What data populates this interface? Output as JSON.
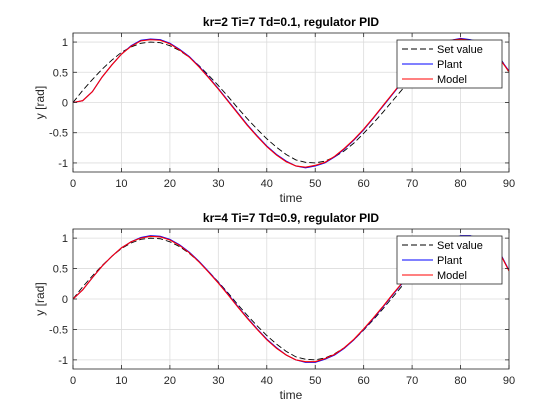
{
  "chart_data": [
    {
      "type": "line",
      "title": "kr=2 Ti=7 Td=0.1, regulator PID",
      "xlabel": "time",
      "ylabel": "y [rad]",
      "xlim": [
        0,
        90
      ],
      "ylim": [
        -1.15,
        1.15
      ],
      "xticks": [
        0,
        10,
        20,
        30,
        40,
        50,
        60,
        70,
        80,
        90
      ],
      "yticks": [
        -1,
        -0.5,
        0,
        0.5,
        1
      ],
      "xtick_labels": [
        "0",
        "10",
        "20",
        "30",
        "40",
        "50",
        "60",
        "70",
        "80",
        "90"
      ],
      "ytick_labels": [
        "-1",
        "-0.5",
        "0",
        "0.5",
        "1"
      ],
      "grid": true,
      "legend_position": "top-right",
      "series": [
        {
          "name": "Set value",
          "color": "#000000",
          "dash": "dashed",
          "x": [
            0,
            2,
            4,
            6,
            8,
            10,
            12,
            14,
            16,
            18,
            20,
            22,
            24,
            26,
            28,
            30,
            32,
            34,
            36,
            38,
            40,
            42,
            44,
            46,
            48,
            50,
            52,
            54,
            56,
            58,
            60,
            62,
            64,
            66,
            68,
            70,
            72,
            74,
            76,
            78,
            80,
            82,
            84,
            86,
            88,
            90
          ],
          "y": [
            0.0,
            0.2,
            0.38,
            0.55,
            0.7,
            0.83,
            0.92,
            0.98,
            1.0,
            0.99,
            0.94,
            0.86,
            0.75,
            0.61,
            0.45,
            0.28,
            0.1,
            -0.09,
            -0.27,
            -0.44,
            -0.6,
            -0.74,
            -0.86,
            -0.95,
            -0.99,
            -1.0,
            -0.97,
            -0.9,
            -0.8,
            -0.67,
            -0.51,
            -0.34,
            -0.16,
            0.03,
            0.22,
            0.39,
            0.56,
            0.71,
            0.84,
            0.93,
            0.99,
            1.0,
            0.96,
            0.88,
            0.76,
            0.5
          ]
        },
        {
          "name": "Plant",
          "color": "#0000ff",
          "dash": "solid",
          "x": [
            0,
            2,
            4,
            6,
            8,
            10,
            12,
            14,
            16,
            18,
            20,
            22,
            24,
            26,
            28,
            30,
            32,
            34,
            36,
            38,
            40,
            42,
            44,
            46,
            48,
            50,
            52,
            54,
            56,
            58,
            60,
            62,
            64,
            66,
            68,
            70,
            72,
            74,
            76,
            78,
            80,
            82,
            84,
            86,
            88,
            90
          ],
          "y": [
            0.0,
            0.03,
            0.18,
            0.42,
            0.62,
            0.8,
            0.94,
            1.03,
            1.05,
            1.04,
            0.98,
            0.88,
            0.76,
            0.6,
            0.42,
            0.23,
            0.03,
            -0.17,
            -0.37,
            -0.55,
            -0.72,
            -0.86,
            -0.97,
            -1.05,
            -1.08,
            -1.05,
            -1.0,
            -0.9,
            -0.77,
            -0.62,
            -0.45,
            -0.26,
            -0.06,
            0.14,
            0.34,
            0.52,
            0.69,
            0.84,
            0.96,
            1.03,
            1.06,
            1.04,
            1.0,
            0.9,
            0.74,
            0.52
          ]
        },
        {
          "name": "Model",
          "color": "#ff0000",
          "dash": "solid",
          "x": [
            0,
            2,
            4,
            6,
            8,
            10,
            12,
            14,
            16,
            18,
            20,
            22,
            24,
            26,
            28,
            30,
            32,
            34,
            36,
            38,
            40,
            42,
            44,
            46,
            48,
            50,
            52,
            54,
            56,
            58,
            60,
            62,
            64,
            66,
            68,
            70,
            72,
            74,
            76,
            78,
            80,
            82,
            84,
            86,
            88,
            90
          ],
          "y": [
            0.0,
            0.03,
            0.18,
            0.42,
            0.62,
            0.8,
            0.93,
            1.02,
            1.04,
            1.03,
            0.97,
            0.87,
            0.75,
            0.59,
            0.41,
            0.22,
            0.02,
            -0.18,
            -0.38,
            -0.56,
            -0.73,
            -0.87,
            -0.98,
            -1.05,
            -1.07,
            -1.04,
            -0.99,
            -0.89,
            -0.76,
            -0.61,
            -0.44,
            -0.25,
            -0.05,
            0.15,
            0.35,
            0.53,
            0.7,
            0.85,
            0.96,
            1.03,
            1.05,
            1.03,
            0.99,
            0.89,
            0.73,
            0.51
          ]
        }
      ]
    },
    {
      "type": "line",
      "title": "kr=4 Ti=7 Td=0.9, regulator PID",
      "xlabel": "time",
      "ylabel": "y [rad]",
      "xlim": [
        0,
        90
      ],
      "ylim": [
        -1.15,
        1.15
      ],
      "xticks": [
        0,
        10,
        20,
        30,
        40,
        50,
        60,
        70,
        80,
        90
      ],
      "yticks": [
        -1,
        -0.5,
        0,
        0.5,
        1
      ],
      "xtick_labels": [
        "0",
        "10",
        "20",
        "30",
        "40",
        "50",
        "60",
        "70",
        "80",
        "90"
      ],
      "ytick_labels": [
        "-1",
        "-0.5",
        "0",
        "0.5",
        "1"
      ],
      "grid": true,
      "legend_position": "top-right",
      "series": [
        {
          "name": "Set value",
          "color": "#000000",
          "dash": "dashed",
          "x": [
            0,
            2,
            4,
            6,
            8,
            10,
            12,
            14,
            16,
            18,
            20,
            22,
            24,
            26,
            28,
            30,
            32,
            34,
            36,
            38,
            40,
            42,
            44,
            46,
            48,
            50,
            52,
            54,
            56,
            58,
            60,
            62,
            64,
            66,
            68,
            70,
            72,
            74,
            76,
            78,
            80,
            82,
            84,
            86,
            88,
            90
          ],
          "y": [
            0.0,
            0.2,
            0.38,
            0.55,
            0.7,
            0.83,
            0.92,
            0.98,
            1.0,
            0.99,
            0.94,
            0.86,
            0.75,
            0.61,
            0.45,
            0.28,
            0.1,
            -0.09,
            -0.27,
            -0.44,
            -0.6,
            -0.74,
            -0.86,
            -0.95,
            -0.99,
            -1.0,
            -0.97,
            -0.9,
            -0.8,
            -0.67,
            -0.51,
            -0.34,
            -0.16,
            0.03,
            0.22,
            0.39,
            0.56,
            0.71,
            0.84,
            0.93,
            0.99,
            1.0,
            0.96,
            0.88,
            0.76,
            0.47
          ]
        },
        {
          "name": "Plant",
          "color": "#0000ff",
          "dash": "solid",
          "x": [
            0,
            2,
            4,
            6,
            8,
            10,
            12,
            14,
            16,
            18,
            20,
            22,
            24,
            26,
            28,
            30,
            32,
            34,
            36,
            38,
            40,
            42,
            44,
            46,
            48,
            50,
            52,
            54,
            56,
            58,
            60,
            62,
            64,
            66,
            68,
            70,
            72,
            74,
            76,
            78,
            80,
            82,
            84,
            86,
            88,
            90
          ],
          "y": [
            0.0,
            0.15,
            0.35,
            0.54,
            0.7,
            0.84,
            0.94,
            1.01,
            1.04,
            1.03,
            0.98,
            0.89,
            0.77,
            0.62,
            0.45,
            0.27,
            0.08,
            -0.12,
            -0.31,
            -0.49,
            -0.66,
            -0.8,
            -0.92,
            -1.0,
            -1.04,
            -1.04,
            -0.99,
            -0.92,
            -0.81,
            -0.67,
            -0.5,
            -0.32,
            -0.13,
            0.07,
            0.26,
            0.44,
            0.61,
            0.76,
            0.89,
            0.98,
            1.04,
            1.04,
            0.99,
            0.91,
            0.78,
            0.47
          ]
        },
        {
          "name": "Model",
          "color": "#ff0000",
          "dash": "solid",
          "x": [
            0,
            2,
            4,
            6,
            8,
            10,
            12,
            14,
            16,
            18,
            20,
            22,
            24,
            26,
            28,
            30,
            32,
            34,
            36,
            38,
            40,
            42,
            44,
            46,
            48,
            50,
            52,
            54,
            56,
            58,
            60,
            62,
            64,
            66,
            68,
            70,
            72,
            74,
            76,
            78,
            80,
            82,
            84,
            86,
            88,
            90
          ],
          "y": [
            0.0,
            0.15,
            0.35,
            0.54,
            0.7,
            0.84,
            0.94,
            1.0,
            1.03,
            1.02,
            0.97,
            0.88,
            0.76,
            0.61,
            0.44,
            0.26,
            0.07,
            -0.13,
            -0.32,
            -0.5,
            -0.67,
            -0.81,
            -0.92,
            -1.0,
            -1.03,
            -1.03,
            -0.98,
            -0.91,
            -0.8,
            -0.66,
            -0.49,
            -0.31,
            -0.12,
            0.08,
            0.27,
            0.45,
            0.62,
            0.77,
            0.89,
            0.98,
            1.03,
            1.03,
            0.98,
            0.9,
            0.77,
            0.46
          ]
        }
      ]
    }
  ]
}
